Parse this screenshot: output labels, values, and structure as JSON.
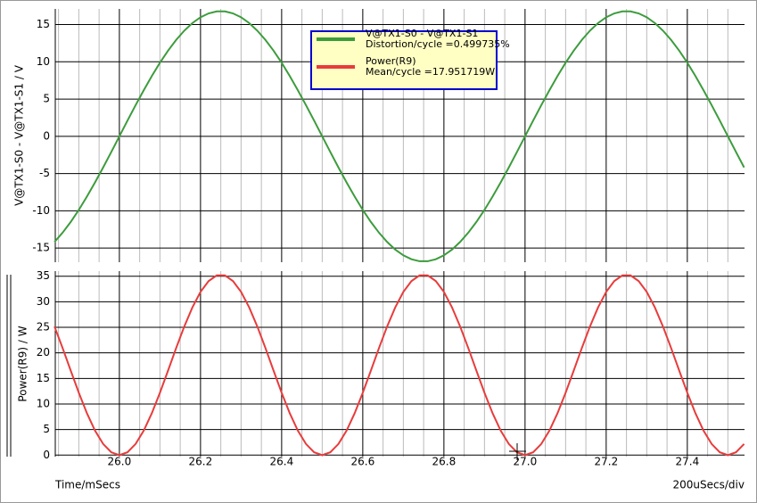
{
  "chart_data": [
    {
      "type": "line",
      "y_label": "V@TX1-S0 - V@TX1-S1 / V",
      "x": [
        25.84,
        25.86,
        25.88,
        25.9,
        25.92,
        25.94,
        25.96,
        25.98,
        26.0,
        26.02,
        26.04,
        26.06,
        26.08,
        26.1,
        26.12,
        26.14,
        26.16,
        26.18,
        26.2,
        26.22,
        26.24,
        26.26,
        26.28,
        26.3,
        26.32,
        26.34,
        26.36,
        26.38,
        26.4,
        26.42,
        26.44,
        26.46,
        26.48,
        26.5,
        26.52,
        26.54,
        26.56,
        26.58,
        26.6,
        26.62,
        26.64,
        26.66,
        26.68,
        26.7,
        26.72,
        26.74,
        26.76,
        26.78,
        26.8,
        26.82,
        26.84,
        26.86,
        26.88,
        26.9,
        26.92,
        26.94,
        26.96,
        26.98,
        27.0,
        27.02,
        27.04,
        27.06,
        27.08,
        27.1,
        27.12,
        27.14,
        27.16,
        27.18,
        27.2,
        27.22,
        27.24,
        27.26,
        27.28,
        27.3,
        27.32,
        27.34,
        27.36,
        27.38,
        27.4,
        27.42,
        27.44,
        27.46,
        27.48,
        27.5,
        27.52,
        27.54
      ],
      "series": [
        {
          "name": "V@TX1-S0 - V@TX1-S1",
          "annotation": "Distortion/cycle =0.499735%",
          "color": "#3c9c3c",
          "values": [
            -14.18,
            -12.94,
            -11.5,
            -9.88,
            -8.09,
            -6.18,
            -4.18,
            -2.11,
            0,
            2.11,
            4.18,
            6.18,
            8.09,
            9.88,
            11.5,
            12.94,
            14.18,
            15.2,
            15.98,
            16.5,
            16.77,
            16.77,
            16.5,
            15.98,
            15.2,
            14.18,
            12.94,
            11.5,
            9.88,
            8.09,
            6.18,
            4.18,
            2.11,
            0,
            -2.11,
            -4.18,
            -6.18,
            -8.09,
            -9.88,
            -11.5,
            -12.94,
            -14.18,
            -15.2,
            -15.98,
            -16.5,
            -16.77,
            -16.77,
            -16.5,
            -15.98,
            -15.2,
            -14.18,
            -12.94,
            -11.5,
            -9.88,
            -8.09,
            -6.18,
            -4.18,
            -2.11,
            0,
            2.11,
            4.18,
            6.18,
            8.09,
            9.88,
            11.5,
            12.94,
            14.18,
            15.2,
            15.98,
            16.5,
            16.77,
            16.77,
            16.5,
            15.98,
            15.2,
            14.18,
            12.94,
            11.5,
            9.88,
            8.09,
            6.18,
            4.18,
            2.11,
            0,
            -2.11,
            -4.18
          ]
        }
      ],
      "xlim": [
        25.842,
        27.541
      ],
      "xticks": [
        {
          "value": 26,
          "label": "26.0"
        },
        26.2,
        26.4,
        26.6,
        26.8,
        {
          "value": 27,
          "label": "27.0"
        },
        27.2,
        27.4
      ],
      "xminorticks": [
        25.85,
        25.9,
        25.95,
        26.05,
        26.1,
        26.15,
        26.25,
        26.3,
        26.35,
        26.45,
        26.5,
        26.55,
        26.65,
        26.7,
        26.75,
        26.85,
        26.9,
        26.95,
        27.05,
        27.1,
        27.15,
        27.25,
        27.3,
        27.35,
        27.45,
        27.5
      ],
      "ylim": [
        -16.9,
        17.1
      ],
      "yticks": [
        -15,
        -10,
        -5,
        0,
        5,
        10,
        15
      ],
      "grid": true
    },
    {
      "type": "line",
      "y_label": "Power(R9) / W",
      "x_label": "Time/mSecs",
      "x_scale_label": "200uSecs/div",
      "x": [
        25.84,
        25.86,
        25.88,
        25.9,
        25.92,
        25.94,
        25.96,
        25.98,
        26.0,
        26.02,
        26.04,
        26.06,
        26.08,
        26.1,
        26.12,
        26.14,
        26.16,
        26.18,
        26.2,
        26.22,
        26.24,
        26.26,
        26.28,
        26.3,
        26.32,
        26.34,
        26.36,
        26.38,
        26.4,
        26.42,
        26.44,
        26.46,
        26.48,
        26.5,
        26.52,
        26.54,
        26.56,
        26.58,
        26.6,
        26.62,
        26.64,
        26.66,
        26.68,
        26.7,
        26.72,
        26.74,
        26.76,
        26.78,
        26.8,
        26.82,
        26.84,
        26.86,
        26.88,
        26.9,
        26.92,
        26.94,
        26.96,
        26.98,
        27.0,
        27.02,
        27.04,
        27.06,
        27.08,
        27.1,
        27.12,
        27.14,
        27.16,
        27.18,
        27.2,
        27.22,
        27.24,
        27.26,
        27.28,
        27.3,
        27.32,
        27.34,
        27.36,
        27.38,
        27.4,
        27.42,
        27.44,
        27.46,
        27.48,
        27.5,
        27.52,
        27.54
      ],
      "series": [
        {
          "name": "Power(R9)",
          "annotation": "Mean/cycle =17.951719W",
          "color": "#e83c3c",
          "values": [
            25.17,
            20.96,
            16.54,
            12.2,
            8.19,
            4.78,
            2.18,
            0.55,
            0,
            0.55,
            2.18,
            4.78,
            8.19,
            12.2,
            16.54,
            20.96,
            25.17,
            28.9,
            31.93,
            34.06,
            35.16,
            35.16,
            34.06,
            31.93,
            28.9,
            25.17,
            20.96,
            16.54,
            12.2,
            8.19,
            4.78,
            2.18,
            0.55,
            0,
            0.55,
            2.18,
            4.78,
            8.19,
            12.2,
            16.54,
            20.96,
            25.17,
            28.9,
            31.93,
            34.06,
            35.16,
            35.16,
            34.06,
            31.93,
            28.9,
            25.17,
            20.96,
            16.54,
            12.2,
            8.19,
            4.78,
            2.18,
            0.55,
            0,
            0.55,
            2.18,
            4.78,
            8.19,
            12.2,
            16.54,
            20.96,
            25.17,
            28.9,
            31.93,
            34.06,
            35.16,
            35.16,
            34.06,
            31.93,
            28.9,
            25.17,
            20.96,
            16.54,
            12.2,
            8.19,
            4.78,
            2.18,
            0.55,
            0,
            0.55,
            2.18
          ]
        }
      ],
      "xlim": [
        25.842,
        27.541
      ],
      "xticks": [
        {
          "value": 26,
          "label": "26.0"
        },
        26.2,
        26.4,
        26.6,
        26.8,
        {
          "value": 27,
          "label": "27.0"
        },
        27.2,
        27.4
      ],
      "xminorticks": [
        25.85,
        25.9,
        25.95,
        26.05,
        26.1,
        26.15,
        26.25,
        26.3,
        26.35,
        26.45,
        26.5,
        26.55,
        26.65,
        26.7,
        26.75,
        26.85,
        26.9,
        26.95,
        27.05,
        27.1,
        27.15,
        27.25,
        27.3,
        27.35,
        27.45,
        27.5
      ],
      "ylim": [
        -0.3,
        36
      ],
      "yticks": [
        0,
        5,
        10,
        15,
        20,
        25,
        30,
        35
      ],
      "grid": true
    }
  ]
}
